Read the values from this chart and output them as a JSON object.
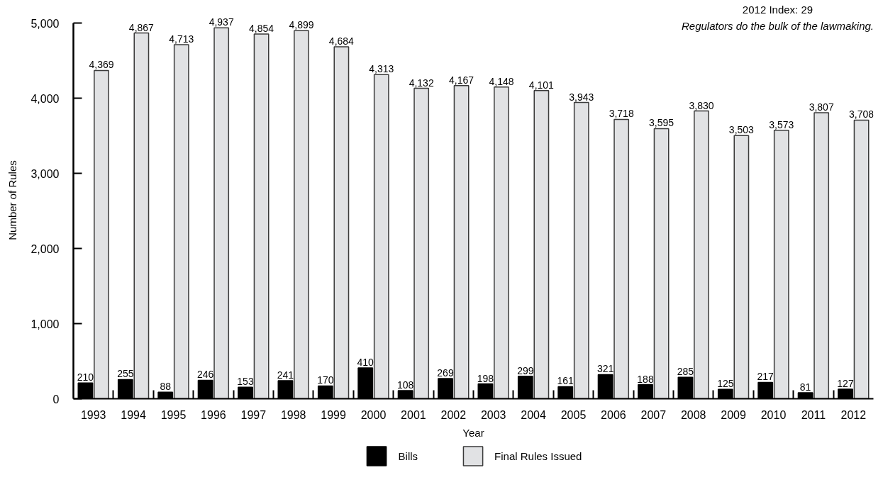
{
  "chart_data": {
    "type": "bar",
    "title": "2012 Index: 29",
    "subtitle": "Regulators do the bulk of the lawmaking.",
    "xlabel": "Year",
    "ylabel": "Number of Rules",
    "categories": [
      "1993",
      "1994",
      "1995",
      "1996",
      "1997",
      "1998",
      "1999",
      "2000",
      "2001",
      "2002",
      "2003",
      "2004",
      "2005",
      "2006",
      "2007",
      "2008",
      "2009",
      "2010",
      "2011",
      "2012"
    ],
    "series": [
      {
        "name": "Bills",
        "color": "#000000",
        "values": [
          210,
          255,
          88,
          246,
          153,
          241,
          170,
          410,
          108,
          269,
          198,
          299,
          161,
          321,
          188,
          285,
          125,
          217,
          81,
          127
        ],
        "value_labels": [
          "210",
          "255",
          "88",
          "246",
          "153",
          "241",
          "170",
          "410",
          "108",
          "269",
          "198",
          "299",
          "161",
          "321",
          "188",
          "285",
          "125",
          "217",
          "81",
          "127"
        ]
      },
      {
        "name": "Final Rules Issued",
        "color": "#e1e2e4",
        "values": [
          4369,
          4867,
          4713,
          4937,
          4854,
          4899,
          4684,
          4313,
          4132,
          4167,
          4148,
          4101,
          3943,
          3718,
          3595,
          3830,
          3503,
          3573,
          3807,
          3708
        ],
        "value_labels": [
          "4,369",
          "4,867",
          "4,713",
          "4,937",
          "4,854",
          "4,899",
          "4,684",
          "4,313",
          "4,132",
          "4,167",
          "4,148",
          "4,101",
          "3,943",
          "3,718",
          "3,595",
          "3,830",
          "3,503",
          "3,573",
          "3,807",
          "3,708"
        ]
      }
    ],
    "ylim": [
      0,
      5000
    ],
    "yticks": [
      0,
      {
        "value": 1000,
        "label": "1,000"
      },
      {
        "value": 2000,
        "label": "2,000"
      },
      {
        "value": 3000,
        "label": "3,000"
      },
      {
        "value": 4000,
        "label": "4,000"
      },
      {
        "value": 5000,
        "label": "5,000"
      }
    ],
    "legend": "bottom",
    "grid": false
  }
}
